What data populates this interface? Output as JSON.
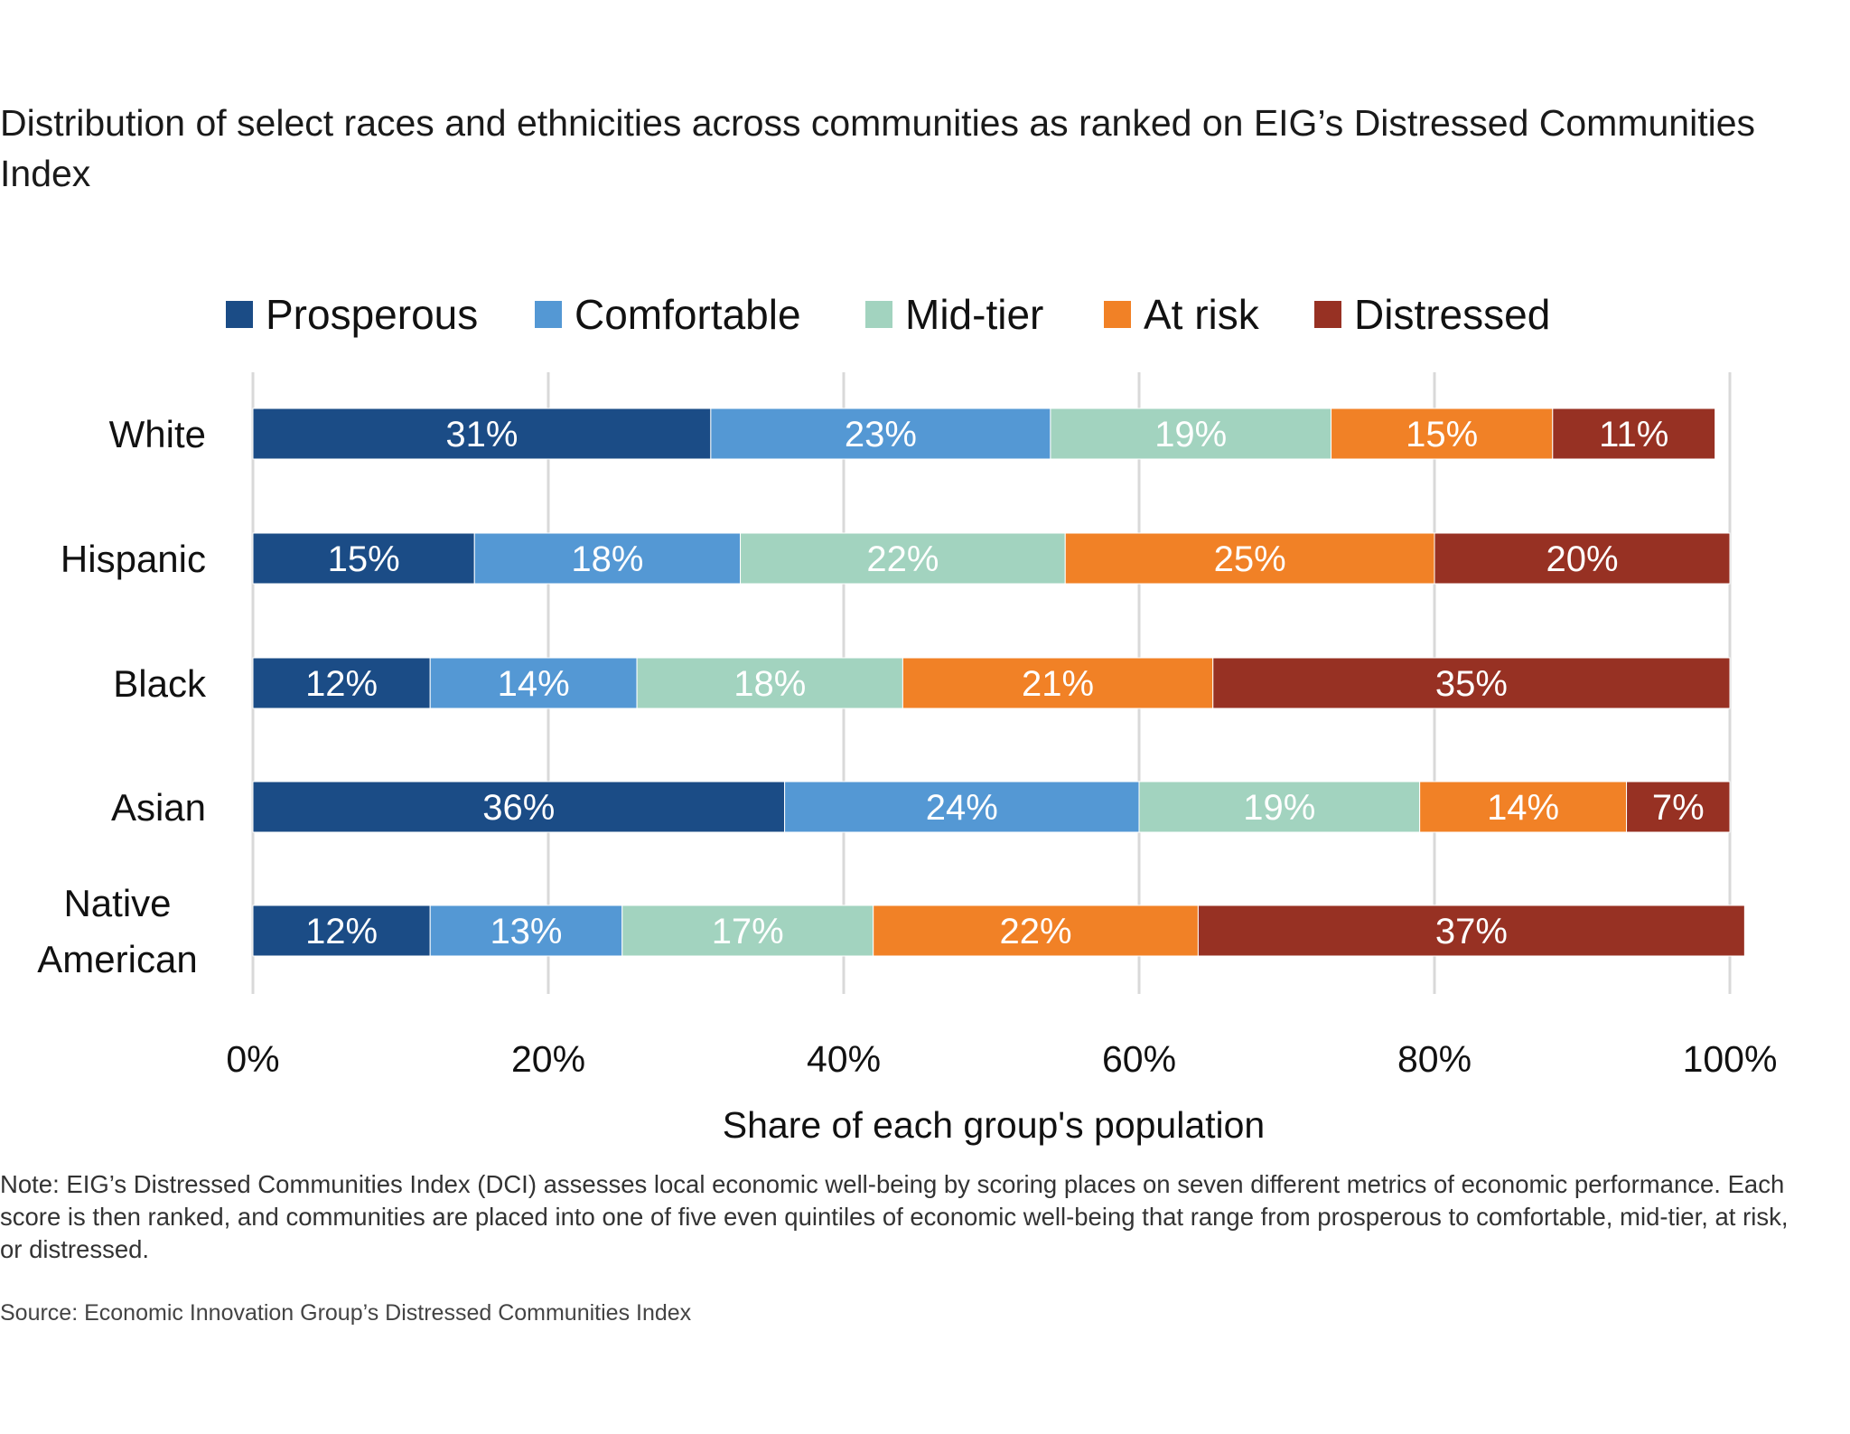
{
  "title": "Distribution of select races and ethnicities across communities as ranked on EIG’s Distressed Communities Index",
  "note": "Note: EIG’s Distressed Communities Index (DCI) assesses local economic well-being by scoring places on seven different metrics of economic performance. Each score is then ranked, and communities are placed into one of five even quintiles of economic well-being that range from prosperous to comfortable, mid-tier, at risk, or distressed.",
  "source": "Source: Economic Innovation Group’s Distressed Communities Index",
  "chart_data": {
    "type": "bar",
    "orientation": "horizontal",
    "stacked": true,
    "title": "Distribution of select races and ethnicities across communities as ranked on EIG’s Distressed Communities Index",
    "xlabel": "Share of each group's population",
    "ylabel": "",
    "xlim": [
      0,
      100
    ],
    "xticks": [
      0,
      20,
      40,
      60,
      80,
      100
    ],
    "xtick_labels": [
      "0%",
      "20%",
      "40%",
      "60%",
      "80%",
      "100%"
    ],
    "grid": "vertical",
    "legend_position": "top",
    "categories": [
      "White",
      "Hispanic",
      "Black",
      "Asian",
      "Native American"
    ],
    "category_lines": [
      [
        "White"
      ],
      [
        "Hispanic"
      ],
      [
        "Black"
      ],
      [
        "Asian"
      ],
      [
        "Native",
        "American"
      ]
    ],
    "series": [
      {
        "name": "Prosperous",
        "color": "#1b4c86",
        "values": [
          31,
          15,
          12,
          36,
          12
        ]
      },
      {
        "name": "Comfortable",
        "color": "#5498d4",
        "values": [
          23,
          18,
          14,
          24,
          13
        ]
      },
      {
        "name": "Mid-tier",
        "color": "#a2d3bf",
        "values": [
          19,
          22,
          18,
          19,
          17
        ]
      },
      {
        "name": "At risk",
        "color": "#f18126",
        "values": [
          15,
          25,
          21,
          14,
          22
        ]
      },
      {
        "name": "Distressed",
        "color": "#973123",
        "values": [
          11,
          20,
          35,
          7,
          37
        ]
      }
    ],
    "data_labels": [
      [
        "31%",
        "23%",
        "19%",
        "15%",
        "11%"
      ],
      [
        "15%",
        "18%",
        "22%",
        "25%",
        "20%"
      ],
      [
        "12%",
        "14%",
        "18%",
        "21%",
        "35%"
      ],
      [
        "36%",
        "24%",
        "19%",
        "14%",
        "7%"
      ],
      [
        "12%",
        "13%",
        "17%",
        "22%",
        "37%"
      ]
    ]
  }
}
